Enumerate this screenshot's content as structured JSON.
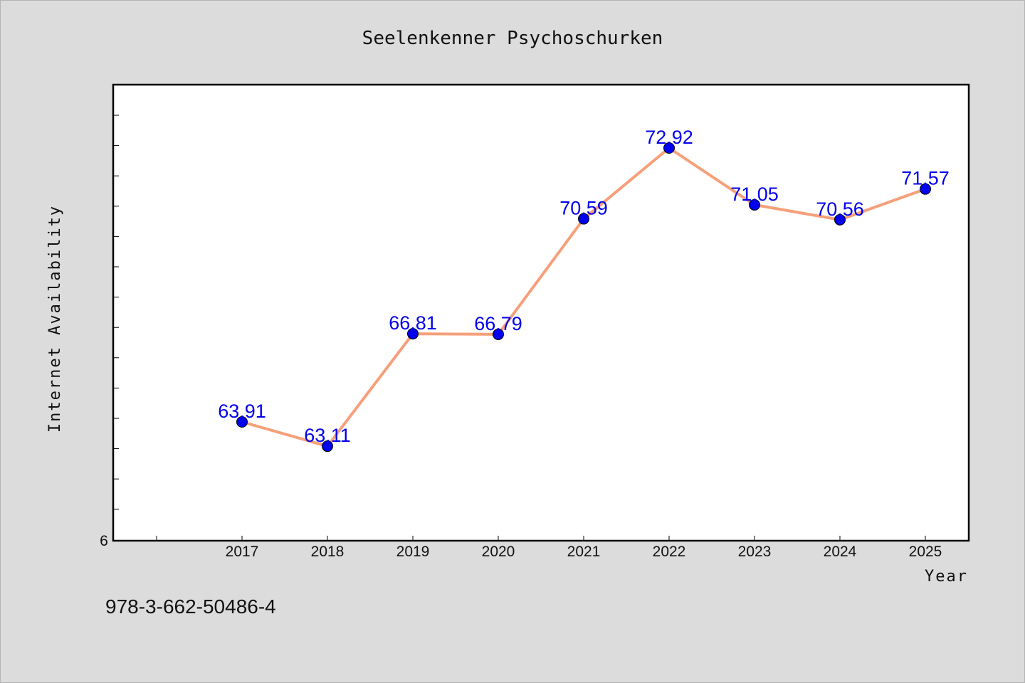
{
  "chart_data": {
    "type": "line",
    "title": "Seelenkenner Psychoschurken",
    "xlabel": "Year",
    "ylabel": "Internet Availability",
    "categories": [
      "2017",
      "2018",
      "2019",
      "2020",
      "2021",
      "2022",
      "2023",
      "2024",
      "2025"
    ],
    "series": [
      {
        "values": [
          63.91,
          63.11,
          66.81,
          66.79,
          70.59,
          72.92,
          71.05,
          70.56,
          71.57
        ],
        "line_color": "#f5a07a",
        "marker_color": "#0000ee"
      }
    ],
    "data_labels": [
      "63.91",
      "63.11",
      "66.81",
      "66.79",
      "70.59",
      "72.92",
      "71.05",
      "70.56",
      "71.57"
    ],
    "y_tick_labels": [
      "6"
    ],
    "ylim": [
      60,
      75
    ],
    "grid": false,
    "legend": "none"
  },
  "footer_text": "978-3-662-50486-4"
}
